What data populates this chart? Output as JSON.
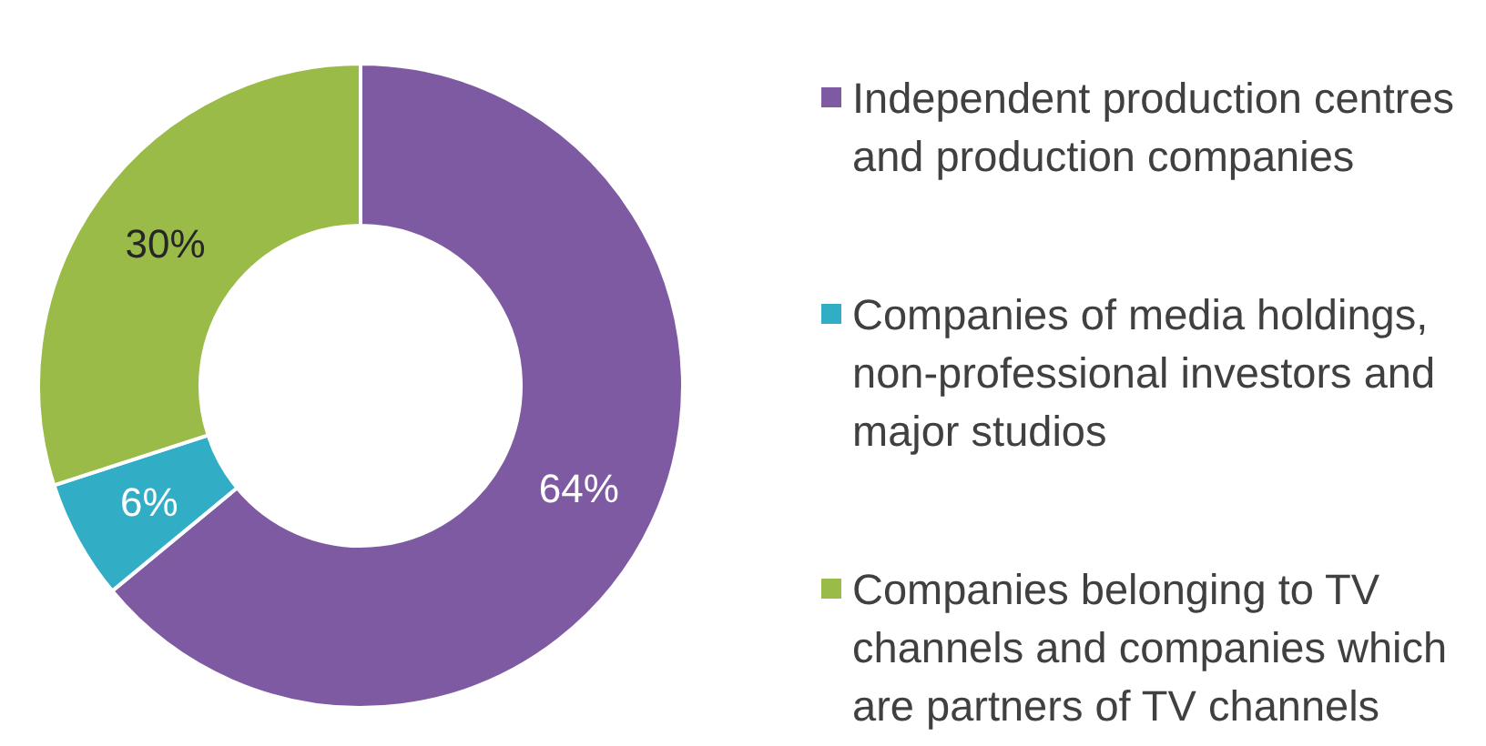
{
  "chart_data": {
    "type": "donut",
    "categories": [
      "Independent production centres and production companies",
      "Companies of media holdings, non-professional investors and major studios",
      "Companies belonging to TV channels and companies which are partners of TV channels"
    ],
    "values": [
      64,
      6,
      30
    ],
    "colors": [
      "#7e5aa2",
      "#31aec6",
      "#9bbb48"
    ],
    "value_labels": [
      "64%",
      "6%",
      "30%"
    ],
    "legend": "right"
  }
}
